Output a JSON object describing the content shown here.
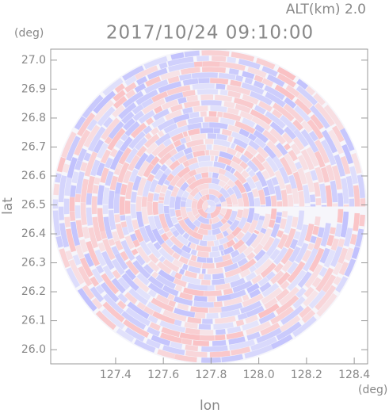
{
  "chart_data": {
    "type": "radar",
    "title": "2017/10/24 09:10:00",
    "subtitle": "ALT(km) 2.0",
    "x_label": "lon",
    "y_label": "lat",
    "x_unit": "(deg)",
    "y_unit": "(deg)",
    "xlim": [
      127.128,
      128.456
    ],
    "ylim": [
      25.951,
      27.038
    ],
    "xticks": [
      127.4,
      127.6,
      127.8,
      {
        "value": 128.0,
        "label": "128.0"
      },
      128.2,
      128.4
    ],
    "yticks": [
      {
        "value": 26.0,
        "label": "26.0"
      },
      26.1,
      26.2,
      26.3,
      26.4,
      26.5,
      26.6,
      26.7,
      26.8,
      26.9,
      {
        "value": 27.0,
        "label": "27.0"
      }
    ]
  }
}
